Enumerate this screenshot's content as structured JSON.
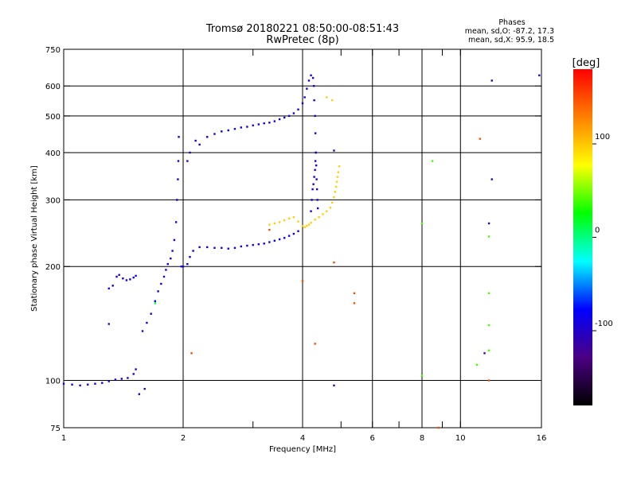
{
  "chart_data": {
    "type": "scatter",
    "title": "Tromsø 20180221 08:50:00-08:51:43",
    "subtitle": "RwPretec (8p)",
    "xlabel": "Frequency [MHz]",
    "ylabel": "Stationary phase Virtual Height [km]",
    "x_scale": "log",
    "y_scale": "log",
    "xlim": [
      1,
      16
    ],
    "ylim": [
      75,
      750
    ],
    "x_ticks": [
      {
        "value": 1,
        "label": "1"
      },
      {
        "value": 2,
        "label": "2"
      },
      {
        "value": 3,
        "label": ""
      },
      {
        "value": 4,
        "label": "4"
      },
      {
        "value": 5,
        "label": ""
      },
      {
        "value": 6,
        "label": "6"
      },
      {
        "value": 7,
        "label": ""
      },
      {
        "value": 8,
        "label": "8"
      },
      {
        "value": 9,
        "label": ""
      },
      {
        "value": 10,
        "label": "10"
      },
      {
        "value": 16,
        "label": "16"
      }
    ],
    "x_grid": [
      2,
      4,
      6,
      8,
      10
    ],
    "y_ticks": [
      {
        "value": 75,
        "label": "75"
      },
      {
        "value": 100,
        "label": "100"
      },
      {
        "value": 200,
        "label": "200"
      },
      {
        "value": 300,
        "label": "300"
      },
      {
        "value": 400,
        "label": "400"
      },
      {
        "value": 500,
        "label": "500"
      },
      {
        "value": 600,
        "label": "600"
      },
      {
        "value": 750,
        "label": "750"
      }
    ],
    "y_grid": [
      100,
      200,
      300,
      400,
      500,
      600
    ],
    "grid": true,
    "colorbar": {
      "label": "[deg]",
      "range": [
        -180,
        180
      ],
      "ticks": [
        {
          "value": 100,
          "label": "100"
        },
        {
          "value": 0,
          "label": "0"
        },
        {
          "value": -100,
          "label": "-100"
        }
      ],
      "stops": [
        "#000000",
        "#4b0082",
        "#0000ff",
        "#00ffff",
        "#00ff00",
        "#ffff00",
        "#ff8000",
        "#ff0000"
      ]
    },
    "stats": {
      "header": "Phases",
      "line_o": "mean, sd,O: -87.2, 17.3",
      "line_x": "mean, sd,X:  95.9, 18.5"
    },
    "series": [
      {
        "phase_deg": -88,
        "points": [
          [
            1.0,
            98
          ],
          [
            1.05,
            97.5
          ],
          [
            1.1,
            97
          ],
          [
            1.15,
            97.5
          ],
          [
            1.2,
            98
          ],
          [
            1.25,
            98.5
          ],
          [
            1.3,
            99.5
          ],
          [
            1.35,
            100.5
          ],
          [
            1.4,
            101
          ],
          [
            1.45,
            101.5
          ],
          [
            1.5,
            104
          ],
          [
            1.52,
            107
          ],
          [
            1.3,
            175
          ],
          [
            1.33,
            178
          ],
          [
            1.36,
            188
          ],
          [
            1.38,
            190
          ],
          [
            1.41,
            186
          ],
          [
            1.44,
            184
          ],
          [
            1.47,
            185
          ],
          [
            1.5,
            187
          ],
          [
            1.52,
            189
          ],
          [
            1.58,
            135
          ],
          [
            1.62,
            142
          ],
          [
            1.66,
            150
          ],
          [
            1.7,
            162
          ],
          [
            1.73,
            172
          ],
          [
            1.76,
            180
          ],
          [
            1.79,
            188
          ],
          [
            1.81,
            196
          ],
          [
            1.83,
            203
          ],
          [
            1.86,
            210
          ],
          [
            1.88,
            220
          ],
          [
            1.9,
            235
          ],
          [
            1.92,
            262
          ],
          [
            1.93,
            300
          ],
          [
            1.94,
            340
          ],
          [
            1.945,
            380
          ],
          [
            1.95,
            440
          ],
          [
            1.98,
            200
          ],
          [
            2.0,
            200
          ],
          [
            2.05,
            203
          ],
          [
            2.08,
            212
          ],
          [
            2.12,
            220
          ],
          [
            2.2,
            225
          ],
          [
            2.3,
            225
          ],
          [
            2.4,
            224
          ],
          [
            2.5,
            224
          ],
          [
            2.6,
            223
          ],
          [
            2.7,
            224
          ],
          [
            2.8,
            226
          ],
          [
            2.9,
            227
          ],
          [
            3.0,
            228
          ],
          [
            3.1,
            229
          ],
          [
            3.2,
            230
          ],
          [
            3.3,
            232
          ],
          [
            3.4,
            234
          ],
          [
            3.5,
            236
          ],
          [
            3.6,
            238
          ],
          [
            3.7,
            241
          ],
          [
            3.8,
            244
          ],
          [
            3.9,
            248
          ],
          [
            2.05,
            380
          ],
          [
            2.08,
            400
          ],
          [
            2.15,
            430
          ],
          [
            2.2,
            420
          ],
          [
            2.3,
            440
          ],
          [
            2.4,
            448
          ],
          [
            2.5,
            455
          ],
          [
            2.6,
            458
          ],
          [
            2.7,
            462
          ],
          [
            2.8,
            466
          ],
          [
            2.9,
            468
          ],
          [
            3.0,
            472
          ],
          [
            3.1,
            475
          ],
          [
            3.2,
            478
          ],
          [
            3.3,
            480
          ],
          [
            3.4,
            484
          ],
          [
            3.5,
            490
          ],
          [
            3.6,
            495
          ],
          [
            3.7,
            500
          ],
          [
            3.8,
            508
          ],
          [
            3.9,
            520
          ],
          [
            4.0,
            540
          ],
          [
            4.05,
            560
          ],
          [
            4.1,
            590
          ],
          [
            4.15,
            620
          ],
          [
            4.2,
            640
          ],
          [
            4.25,
            630
          ],
          [
            4.27,
            600
          ],
          [
            4.28,
            550
          ],
          [
            4.3,
            500
          ],
          [
            4.31,
            450
          ],
          [
            4.32,
            400
          ],
          [
            4.33,
            370
          ],
          [
            4.34,
            340
          ],
          [
            4.35,
            320
          ],
          [
            4.36,
            300
          ],
          [
            4.37,
            285
          ],
          [
            4.2,
            280
          ],
          [
            4.22,
            300
          ],
          [
            4.24,
            320
          ],
          [
            4.26,
            330
          ],
          [
            4.28,
            345
          ],
          [
            4.3,
            360
          ],
          [
            4.31,
            380
          ],
          [
            4.32,
            400
          ]
        ]
      },
      {
        "phase_deg": 96,
        "points": [
          [
            3.3,
            258
          ],
          [
            3.4,
            260
          ],
          [
            3.5,
            262
          ],
          [
            3.6,
            265
          ],
          [
            3.7,
            268
          ],
          [
            3.8,
            270
          ],
          [
            3.9,
            263
          ],
          [
            4.0,
            256
          ],
          [
            4.05,
            254
          ],
          [
            4.1,
            256
          ],
          [
            4.15,
            258
          ],
          [
            4.2,
            261
          ],
          [
            4.3,
            266
          ],
          [
            4.4,
            270
          ],
          [
            4.5,
            275
          ],
          [
            4.6,
            280
          ],
          [
            4.7,
            286
          ],
          [
            4.75,
            295
          ],
          [
            4.8,
            305
          ],
          [
            4.83,
            315
          ],
          [
            4.86,
            325
          ],
          [
            4.88,
            335
          ],
          [
            4.9,
            345
          ],
          [
            4.92,
            355
          ],
          [
            4.95,
            368
          ],
          [
            4.6,
            560
          ],
          [
            4.75,
            550
          ]
        ]
      },
      {
        "phase_deg": 10,
        "points": [
          [
            1.7,
            160
          ]
        ]
      },
      {
        "phase_deg": 150,
        "points": [
          [
            2.1,
            118
          ],
          [
            3.3,
            250
          ],
          [
            4.0,
            183
          ],
          [
            4.3,
            125
          ],
          [
            4.8,
            205
          ],
          [
            5.4,
            170
          ],
          [
            5.4,
            160
          ],
          [
            8.8,
            75
          ],
          [
            11.2,
            435
          ],
          [
            11.8,
            100
          ]
        ]
      },
      {
        "phase_deg": -110,
        "points": [
          [
            1.3,
            141
          ],
          [
            1.55,
            92
          ],
          [
            1.6,
            95
          ],
          [
            4.8,
            97
          ],
          [
            4.8,
            405
          ],
          [
            11.5,
            118
          ],
          [
            11.8,
            260
          ],
          [
            12.0,
            340
          ],
          [
            15.8,
            640
          ],
          [
            12.0,
            620
          ]
        ]
      },
      {
        "phase_deg": 40,
        "points": [
          [
            8.0,
            260
          ],
          [
            8.0,
            103
          ],
          [
            8.5,
            380
          ],
          [
            11.0,
            110
          ],
          [
            11.8,
            240
          ],
          [
            11.8,
            170
          ],
          [
            11.8,
            140
          ],
          [
            11.8,
            120
          ]
        ]
      }
    ]
  }
}
